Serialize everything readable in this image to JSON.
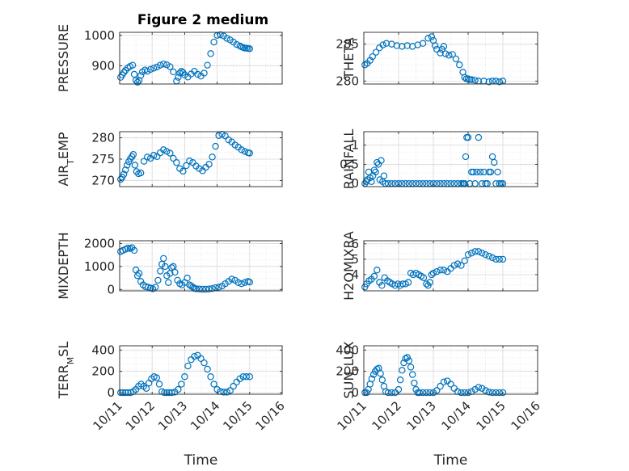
{
  "figure": {
    "title": "Figure 2 medium"
  },
  "style": {
    "marker_color": "#0072BD",
    "axis_color": "#262626",
    "grid_color": "#d9d9d9"
  },
  "chart_data": [
    {
      "type": "scatter",
      "ylabel": "PRESSURE",
      "xlabel": "",
      "title": "Figure 2 medium",
      "xlim": [
        0,
        5
      ],
      "ylim": [
        840,
        1010
      ],
      "yticks": [
        900,
        1000
      ],
      "ytick_labels": [
        "900",
        "1000"
      ],
      "xticks": [
        0,
        1,
        2,
        3,
        4,
        5
      ],
      "xtick_labels": [
        "10/11",
        "10/12",
        "10/13",
        "10/14",
        "10/15",
        "10/16"
      ],
      "show_xtick_labels": false,
      "grid": true,
      "series": [
        {
          "x": [
            0.03,
            0.08,
            0.13,
            0.18,
            0.25,
            0.32,
            0.4,
            0.45,
            0.5,
            0.55,
            0.6,
            0.65,
            0.7,
            0.78,
            0.85,
            0.95,
            1.05,
            1.15,
            1.25,
            1.35,
            1.45,
            1.55,
            1.65,
            1.75,
            1.8,
            1.85,
            1.9,
            1.95,
            2.0,
            2.1,
            2.2,
            2.3,
            2.4,
            2.5,
            2.6,
            2.7,
            2.8,
            2.9,
            3.0,
            3.1,
            3.2,
            3.3,
            3.4,
            3.5,
            3.6,
            3.7,
            3.75,
            3.8,
            3.85,
            3.9,
            3.95,
            4.0
          ],
          "y": [
            862,
            870,
            878,
            885,
            893,
            898,
            902,
            872,
            852,
            846,
            852,
            868,
            880,
            886,
            882,
            888,
            892,
            896,
            902,
            906,
            903,
            897,
            880,
            850,
            862,
            876,
            882,
            878,
            870,
            863,
            873,
            882,
            872,
            866,
            876,
            902,
            940,
            978,
            1000,
            1002,
            998,
            990,
            985,
            978,
            970,
            965,
            962,
            960,
            958,
            958,
            957,
            956
          ]
        }
      ]
    },
    {
      "type": "scatter",
      "ylabel": "THETA",
      "xlabel": "",
      "xlim": [
        0,
        5
      ],
      "ylim": [
        279.6,
        286.6
      ],
      "yticks": [
        280,
        285
      ],
      "ytick_labels": [
        "280",
        "285"
      ],
      "xticks": [
        0,
        1,
        2,
        3,
        4,
        5
      ],
      "xtick_labels": [
        "10/11",
        "10/12",
        "10/13",
        "10/14",
        "10/15",
        "10/16"
      ],
      "show_xtick_labels": false,
      "grid": true,
      "series": [
        {
          "x": [
            0.03,
            0.1,
            0.18,
            0.25,
            0.35,
            0.45,
            0.55,
            0.65,
            0.8,
            0.95,
            1.1,
            1.25,
            1.4,
            1.55,
            1.7,
            1.85,
            1.95,
            2.0,
            2.05,
            2.1,
            2.2,
            2.25,
            2.3,
            2.35,
            2.45,
            2.55,
            2.65,
            2.75,
            2.85,
            2.9,
            2.95,
            3.0,
            3.05,
            3.1,
            3.2,
            3.3,
            3.45,
            3.6,
            3.7,
            3.8,
            3.9,
            4.0
          ],
          "y": [
            282.2,
            282.4,
            282.8,
            283.3,
            283.9,
            284.5,
            284.9,
            285.1,
            285.0,
            284.8,
            284.7,
            284.8,
            284.7,
            284.9,
            285.1,
            285.8,
            286.0,
            285.5,
            284.8,
            284.3,
            283.8,
            284.3,
            284.7,
            283.7,
            283.5,
            283.6,
            283.0,
            282.2,
            281.2,
            280.5,
            280.3,
            280.3,
            280.2,
            280.2,
            280.1,
            280.0,
            280.0,
            279.9,
            280.0,
            280.0,
            279.9,
            280.0
          ]
        }
      ]
    },
    {
      "type": "scatter",
      "ylabel": "AIR_TEMP",
      "xlabel": "",
      "xlim": [
        0,
        5
      ],
      "ylim": [
        268.6,
        281.4
      ],
      "yticks": [
        270,
        275,
        280
      ],
      "ytick_labels": [
        "270",
        "275",
        "280"
      ],
      "xticks": [
        0,
        1,
        2,
        3,
        4,
        5
      ],
      "xtick_labels": [
        "10/11",
        "10/12",
        "10/13",
        "10/14",
        "10/15",
        "10/16"
      ],
      "show_xtick_labels": false,
      "grid": true,
      "series": [
        {
          "x": [
            0.03,
            0.08,
            0.13,
            0.18,
            0.23,
            0.28,
            0.33,
            0.38,
            0.42,
            0.47,
            0.52,
            0.58,
            0.65,
            0.75,
            0.85,
            0.95,
            1.05,
            1.15,
            1.25,
            1.35,
            1.45,
            1.55,
            1.65,
            1.75,
            1.85,
            1.95,
            2.05,
            2.15,
            2.25,
            2.35,
            2.45,
            2.55,
            2.65,
            2.75,
            2.85,
            2.95,
            3.05,
            3.15,
            3.25,
            3.35,
            3.45,
            3.55,
            3.65,
            3.75,
            3.85,
            3.95,
            4.0
          ],
          "y": [
            270.3,
            270.8,
            271.5,
            272.5,
            273.6,
            274.4,
            275.1,
            275.6,
            276.1,
            273.6,
            272.1,
            271.6,
            271.8,
            274.5,
            275.5,
            275.2,
            275.9,
            275.6,
            276.5,
            277.2,
            276.8,
            276.4,
            275.2,
            274.2,
            272.8,
            272.2,
            273.5,
            274.6,
            274.2,
            273.4,
            272.8,
            272.3,
            273.1,
            273.8,
            275.5,
            278.0,
            280.5,
            280.8,
            280.4,
            279.5,
            279.0,
            278.3,
            277.8,
            277.2,
            276.8,
            276.5,
            276.4
          ]
        }
      ]
    },
    {
      "type": "scatter",
      "ylabel": "RAINFALL",
      "xlabel": "",
      "xlim": [
        0,
        5
      ],
      "ylim": [
        -0.08,
        1.35
      ],
      "yticks": [
        0,
        0.5,
        1
      ],
      "ytick_labels": [
        "0",
        "0.5",
        "1"
      ],
      "xticks": [
        0,
        1,
        2,
        3,
        4,
        5
      ],
      "xtick_labels": [
        "10/11",
        "10/12",
        "10/13",
        "10/14",
        "10/15",
        "10/16"
      ],
      "show_xtick_labels": false,
      "grid": true,
      "series": [
        {
          "x": [
            0.03,
            0.07,
            0.1,
            0.14,
            0.18,
            0.22,
            0.26,
            0.3,
            0.34,
            0.38,
            0.42,
            0.46,
            0.5,
            0.54,
            0.58,
            0.62,
            0.7,
            0.8,
            0.9,
            1.0,
            1.1,
            1.2,
            1.3,
            1.4,
            1.5,
            1.6,
            1.7,
            1.8,
            1.9,
            2.0,
            2.1,
            2.2,
            2.3,
            2.4,
            2.5,
            2.6,
            2.7,
            2.8,
            2.85,
            2.88,
            2.9,
            2.93,
            2.96,
            3.0,
            3.05,
            3.1,
            3.15,
            3.2,
            3.25,
            3.3,
            3.35,
            3.4,
            3.45,
            3.5,
            3.55,
            3.6,
            3.65,
            3.7,
            3.75,
            3.8,
            3.85,
            3.9,
            3.95,
            4.0
          ],
          "y": [
            0.0,
            0.05,
            0.1,
            0.3,
            0.15,
            0.05,
            0.2,
            0.35,
            0.3,
            0.55,
            0.5,
            0.1,
            0.6,
            0.05,
            0.2,
            0.0,
            0.0,
            0.0,
            0.0,
            0.0,
            0.0,
            0.0,
            0.0,
            0.0,
            0.0,
            0.0,
            0.0,
            0.0,
            0.0,
            0.0,
            0.0,
            0.0,
            0.0,
            0.0,
            0.0,
            0.0,
            0.0,
            0.0,
            0.0,
            0.0,
            0.0,
            0.7,
            1.2,
            1.2,
            0.0,
            0.3,
            0.3,
            0.0,
            0.3,
            1.2,
            0.3,
            0.0,
            0.3,
            0.0,
            0.0,
            0.3,
            0.3,
            0.7,
            0.55,
            0.0,
            0.3,
            0.0,
            0.0,
            0.0
          ]
        }
      ]
    },
    {
      "type": "scatter",
      "ylabel": "MIXDEPTH",
      "xlabel": "",
      "xlim": [
        0,
        5
      ],
      "ylim": [
        -60,
        2120
      ],
      "yticks": [
        0,
        1000,
        2000
      ],
      "ytick_labels": [
        "0",
        "1000",
        "2000"
      ],
      "xticks": [
        0,
        1,
        2,
        3,
        4,
        5
      ],
      "xtick_labels": [
        "10/11",
        "10/12",
        "10/13",
        "10/14",
        "10/15",
        "10/16"
      ],
      "show_xtick_labels": false,
      "grid": true,
      "series": [
        {
          "x": [
            0.03,
            0.1,
            0.18,
            0.25,
            0.32,
            0.38,
            0.45,
            0.5,
            0.55,
            0.6,
            0.65,
            0.72,
            0.8,
            0.88,
            0.95,
            1.02,
            1.1,
            1.18,
            1.25,
            1.3,
            1.35,
            1.4,
            1.45,
            1.5,
            1.55,
            1.6,
            1.65,
            1.7,
            1.78,
            1.85,
            1.92,
            2.0,
            2.08,
            2.15,
            2.2,
            2.25,
            2.3,
            2.35,
            2.45,
            2.55,
            2.65,
            2.75,
            2.85,
            2.95,
            3.05,
            3.15,
            3.25,
            3.35,
            3.45,
            3.55,
            3.65,
            3.75,
            3.85,
            3.95,
            4.0
          ],
          "y": [
            1650,
            1700,
            1750,
            1800,
            1780,
            1820,
            1700,
            850,
            600,
            700,
            350,
            200,
            120,
            100,
            60,
            30,
            100,
            400,
            800,
            1100,
            1350,
            1000,
            600,
            300,
            700,
            950,
            1000,
            750,
            400,
            250,
            200,
            300,
            500,
            200,
            150,
            100,
            50,
            30,
            20,
            10,
            10,
            20,
            40,
            80,
            100,
            150,
            250,
            350,
            450,
            400,
            300,
            250,
            300,
            350,
            320
          ]
        }
      ]
    },
    {
      "type": "scatter",
      "ylabel": "H2OMIXRA",
      "xlabel": "",
      "xlim": [
        0,
        5
      ],
      "ylim": [
        2.95,
        6.2
      ],
      "yticks": [
        4,
        5,
        6
      ],
      "ytick_labels": [
        "4",
        "5",
        "6"
      ],
      "xticks": [
        0,
        1,
        2,
        3,
        4,
        5
      ],
      "xtick_labels": [
        "10/11",
        "10/12",
        "10/13",
        "10/14",
        "10/15",
        "10/16"
      ],
      "show_xtick_labels": false,
      "grid": true,
      "series": [
        {
          "x": [
            0.03,
            0.08,
            0.15,
            0.22,
            0.3,
            0.38,
            0.45,
            0.52,
            0.6,
            0.68,
            0.75,
            0.82,
            0.9,
            0.98,
            1.05,
            1.12,
            1.2,
            1.28,
            1.35,
            1.42,
            1.5,
            1.58,
            1.65,
            1.72,
            1.8,
            1.85,
            1.9,
            1.95,
            2.0,
            2.1,
            2.2,
            2.3,
            2.4,
            2.5,
            2.6,
            2.7,
            2.8,
            2.9,
            3.0,
            3.1,
            3.2,
            3.3,
            3.4,
            3.5,
            3.6,
            3.7,
            3.8,
            3.9,
            4.0
          ],
          "y": [
            3.2,
            3.4,
            3.6,
            3.7,
            3.9,
            4.3,
            3.5,
            3.3,
            3.8,
            3.6,
            3.5,
            3.4,
            3.3,
            3.4,
            3.3,
            3.4,
            3.4,
            3.5,
            4.1,
            4.0,
            4.1,
            4.0,
            3.9,
            3.8,
            3.4,
            3.3,
            3.5,
            4.0,
            4.1,
            4.2,
            4.3,
            4.3,
            4.2,
            4.4,
            4.6,
            4.7,
            4.6,
            4.9,
            5.3,
            5.4,
            5.5,
            5.5,
            5.4,
            5.3,
            5.2,
            5.1,
            5.0,
            5.0,
            5.0
          ]
        }
      ]
    },
    {
      "type": "scatter",
      "ylabel": "TERR_MSL",
      "xlabel": "Time",
      "xlim": [
        0,
        5
      ],
      "ylim": [
        -15,
        440
      ],
      "yticks": [
        0,
        200,
        400
      ],
      "ytick_labels": [
        "0",
        "200",
        "400"
      ],
      "xticks": [
        0,
        1,
        2,
        3,
        4,
        5
      ],
      "xtick_labels": [
        "10/11",
        "10/12",
        "10/13",
        "10/14",
        "10/15",
        "10/16"
      ],
      "show_xtick_labels": true,
      "grid": true,
      "series": [
        {
          "x": [
            0.03,
            0.1,
            0.18,
            0.26,
            0.34,
            0.42,
            0.5,
            0.58,
            0.66,
            0.74,
            0.82,
            0.9,
            0.98,
            1.06,
            1.14,
            1.22,
            1.3,
            1.38,
            1.45,
            1.52,
            1.6,
            1.7,
            1.8,
            1.9,
            2.0,
            2.1,
            2.2,
            2.3,
            2.4,
            2.5,
            2.6,
            2.7,
            2.8,
            2.9,
            3.0,
            3.1,
            3.2,
            3.3,
            3.4,
            3.5,
            3.6,
            3.7,
            3.8,
            3.9,
            4.0
          ],
          "y": [
            0,
            0,
            0,
            0,
            0,
            10,
            30,
            60,
            80,
            60,
            40,
            90,
            130,
            150,
            140,
            80,
            10,
            0,
            0,
            0,
            0,
            5,
            30,
            80,
            150,
            250,
            310,
            340,
            350,
            320,
            280,
            220,
            150,
            80,
            30,
            10,
            5,
            5,
            20,
            60,
            100,
            130,
            150,
            150,
            150
          ]
        }
      ]
    },
    {
      "type": "scatter",
      "ylabel": "SUN_FLUX",
      "xlabel": "Time",
      "xlim": [
        0,
        5
      ],
      "ylim": [
        -15,
        440
      ],
      "yticks": [
        0,
        200,
        400
      ],
      "ytick_labels": [
        "0",
        "200",
        "400"
      ],
      "xticks": [
        0,
        1,
        2,
        3,
        4,
        5
      ],
      "xtick_labels": [
        "10/11",
        "10/12",
        "10/13",
        "10/14",
        "10/15",
        "10/16"
      ],
      "show_xtick_labels": true,
      "grid": true,
      "series": [
        {
          "x": [
            0.03,
            0.08,
            0.13,
            0.18,
            0.23,
            0.28,
            0.33,
            0.38,
            0.43,
            0.48,
            0.53,
            0.58,
            0.63,
            0.7,
            0.8,
            0.9,
            1.0,
            1.05,
            1.1,
            1.15,
            1.2,
            1.25,
            1.3,
            1.35,
            1.4,
            1.45,
            1.5,
            1.55,
            1.6,
            1.7,
            1.8,
            1.9,
            2.0,
            2.1,
            2.2,
            2.3,
            2.4,
            2.5,
            2.6,
            2.7,
            2.8,
            2.9,
            3.0,
            3.1,
            3.2,
            3.3,
            3.4,
            3.5,
            3.6,
            3.7,
            3.8,
            3.9,
            4.0
          ],
          "y": [
            0,
            0,
            30,
            80,
            130,
            170,
            200,
            220,
            230,
            180,
            120,
            60,
            10,
            0,
            0,
            0,
            30,
            120,
            210,
            280,
            320,
            330,
            300,
            240,
            170,
            90,
            30,
            0,
            0,
            0,
            0,
            0,
            0,
            20,
            60,
            100,
            110,
            80,
            40,
            10,
            0,
            0,
            0,
            10,
            30,
            50,
            40,
            20,
            5,
            0,
            0,
            0,
            0
          ]
        }
      ]
    }
  ]
}
